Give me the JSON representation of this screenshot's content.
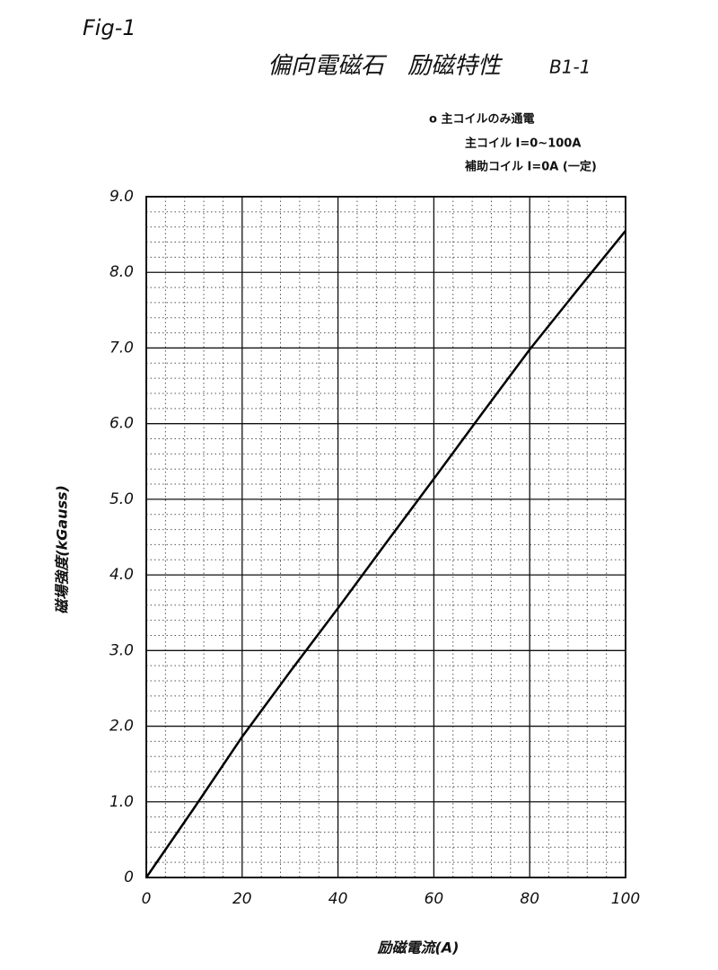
{
  "chart_data": {
    "type": "line",
    "figure_label": "Fig-1",
    "title": "偏向電磁石　励磁特性",
    "subtitle": "B1-1",
    "annotations": [
      "o 主コイルのみ通電",
      "主コイル I=0~100A",
      "補助コイル I=0A (一定)"
    ],
    "x_label": "励磁電流(A)",
    "y_label": "磁場強度(kGauss)",
    "x": [
      0,
      10,
      20,
      30,
      40,
      50,
      60,
      70,
      80,
      90,
      100
    ],
    "values": [
      0,
      0.92,
      1.86,
      2.72,
      3.56,
      4.42,
      5.27,
      6.13,
      6.98,
      7.77,
      8.55
    ],
    "color": "#000000",
    "xlim": [
      0,
      100
    ],
    "ylim": [
      0,
      9
    ],
    "xticks": [
      0,
      20,
      40,
      60,
      80,
      100
    ],
    "yticks": [
      0,
      {
        "value": 1,
        "label": "1.0"
      },
      {
        "value": 2,
        "label": "2.0"
      },
      {
        "value": 3,
        "label": "3.0"
      },
      {
        "value": 4,
        "label": "4.0"
      },
      {
        "value": 5,
        "label": "5.0"
      },
      {
        "value": 6,
        "label": "6.0"
      },
      {
        "value": 7,
        "label": "7.0"
      },
      {
        "value": 8,
        "label": "8.0"
      },
      {
        "value": 9,
        "label": "9.0"
      }
    ],
    "minor_xticks": [
      4,
      8,
      12,
      16,
      24,
      28,
      32,
      36,
      44,
      48,
      52,
      56,
      64,
      68,
      72,
      76,
      84,
      88,
      92,
      96
    ],
    "minor_yticks": [
      0.2,
      0.4,
      0.6,
      0.8,
      1.2,
      1.4,
      1.6,
      1.8,
      2.2,
      2.4,
      2.6,
      2.8,
      3.2,
      3.4,
      3.6,
      3.8,
      4.2,
      4.4,
      4.6,
      4.8,
      5.2,
      5.4,
      5.6,
      5.8,
      6.2,
      6.4,
      6.6,
      6.8,
      7.2,
      7.4,
      7.6,
      7.8,
      8.2,
      8.4,
      8.6,
      8.8
    ],
    "grid": true
  }
}
